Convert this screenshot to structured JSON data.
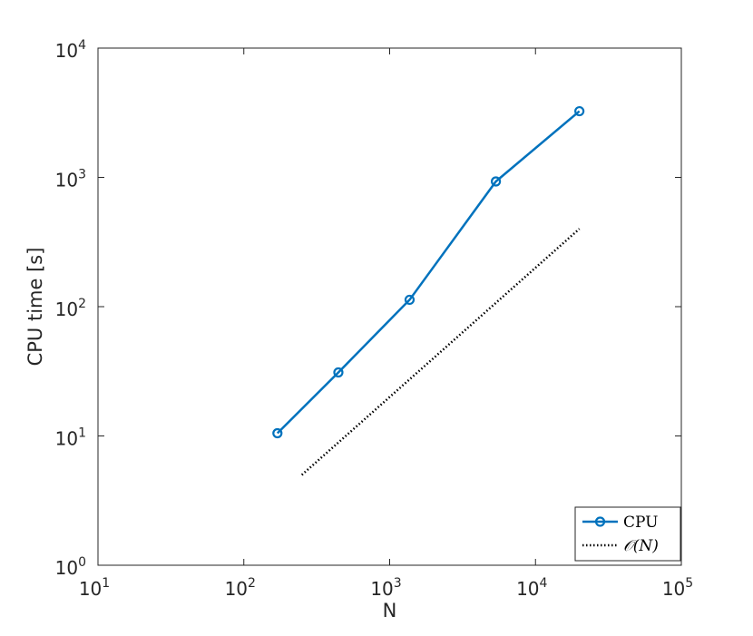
{
  "chart_data": {
    "type": "line",
    "x_scale": "log",
    "y_scale": "log",
    "xlabel": "N",
    "ylabel": "CPU time [s]",
    "xlim": [
      10,
      100000
    ],
    "ylim": [
      1,
      10000
    ],
    "x_ticks": [
      {
        "value": 10,
        "base": "10",
        "exp": "1"
      },
      {
        "value": 100,
        "base": "10",
        "exp": "2"
      },
      {
        "value": 1000,
        "base": "10",
        "exp": "3"
      },
      {
        "value": 10000,
        "base": "10",
        "exp": "4"
      },
      {
        "value": 100000,
        "base": "10",
        "exp": "5"
      }
    ],
    "y_ticks": [
      {
        "value": 1,
        "base": "10",
        "exp": "0"
      },
      {
        "value": 10,
        "base": "10",
        "exp": "1"
      },
      {
        "value": 100,
        "base": "10",
        "exp": "2"
      },
      {
        "value": 1000,
        "base": "10",
        "exp": "3"
      },
      {
        "value": 10000,
        "base": "10",
        "exp": "4"
      }
    ],
    "grid": false,
    "legend_position": "bottom-right",
    "series": [
      {
        "name": "CPU",
        "style": "solid-circle-markers",
        "color": "#0072BD",
        "x": [
          170,
          445,
          1370,
          5350,
          20000
        ],
        "y": [
          10.5,
          31,
          113,
          930,
          3250
        ]
      },
      {
        "name": "𝒪(N)",
        "style": "dotted",
        "color": "#000000",
        "x": [
          250,
          20000
        ],
        "y": [
          5,
          400
        ]
      }
    ]
  }
}
